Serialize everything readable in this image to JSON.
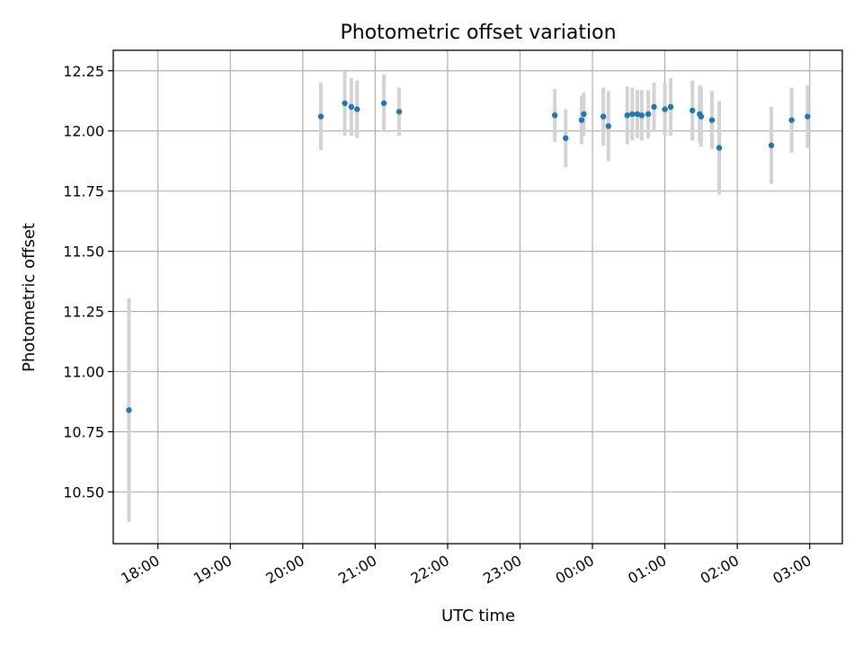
{
  "chart_data": {
    "type": "scatter",
    "title": "Photometric offset variation",
    "xlabel": "UTC time",
    "ylabel": "Photometric offset",
    "x_unit": "hours (UTC, continuing past midnight)",
    "xlim": [
      17.3833,
      27.45
    ],
    "ylim": [
      10.285,
      12.335
    ],
    "xticks": [
      {
        "value": 18,
        "label": "18:00"
      },
      {
        "value": 19,
        "label": "19:00"
      },
      {
        "value": 20,
        "label": "20:00"
      },
      {
        "value": 21,
        "label": "21:00"
      },
      {
        "value": 22,
        "label": "22:00"
      },
      {
        "value": 23,
        "label": "23:00"
      },
      {
        "value": 24,
        "label": "00:00"
      },
      {
        "value": 25,
        "label": "01:00"
      },
      {
        "value": 26,
        "label": "02:00"
      },
      {
        "value": 27,
        "label": "03:00"
      }
    ],
    "yticks": [
      {
        "value": 10.5,
        "label": "10.50"
      },
      {
        "value": 10.75,
        "label": "10.75"
      },
      {
        "value": 11.0,
        "label": "11.00"
      },
      {
        "value": 11.25,
        "label": "11.25"
      },
      {
        "value": 11.5,
        "label": "11.50"
      },
      {
        "value": 11.75,
        "label": "11.75"
      },
      {
        "value": 12.0,
        "label": "12.00"
      },
      {
        "value": 12.25,
        "label": "12.25"
      }
    ],
    "grid": true,
    "colors": {
      "points": "#1f77b4",
      "errorbars": "#d3d3d3",
      "grid": "#b0b0b0"
    },
    "points": [
      {
        "x": 17.6,
        "y": 10.84,
        "err": 0.465
      },
      {
        "x": 20.25,
        "y": 12.06,
        "err": 0.14
      },
      {
        "x": 20.58,
        "y": 12.115,
        "err": 0.135
      },
      {
        "x": 20.67,
        "y": 12.1,
        "err": 0.12
      },
      {
        "x": 20.75,
        "y": 12.09,
        "err": 0.12
      },
      {
        "x": 21.12,
        "y": 12.115,
        "err": 0.12
      },
      {
        "x": 21.33,
        "y": 12.08,
        "err": 0.1
      },
      {
        "x": 23.48,
        "y": 12.065,
        "err": 0.11
      },
      {
        "x": 23.63,
        "y": 11.97,
        "err": 0.12
      },
      {
        "x": 23.85,
        "y": 12.045,
        "err": 0.1
      },
      {
        "x": 23.88,
        "y": 12.07,
        "err": 0.09
      },
      {
        "x": 24.15,
        "y": 12.06,
        "err": 0.12
      },
      {
        "x": 24.22,
        "y": 12.02,
        "err": 0.145
      },
      {
        "x": 24.48,
        "y": 12.065,
        "err": 0.12
      },
      {
        "x": 24.55,
        "y": 12.07,
        "err": 0.11
      },
      {
        "x": 24.62,
        "y": 12.07,
        "err": 0.1
      },
      {
        "x": 24.68,
        "y": 12.065,
        "err": 0.105
      },
      {
        "x": 24.77,
        "y": 12.07,
        "err": 0.1
      },
      {
        "x": 24.85,
        "y": 12.1,
        "err": 0.1
      },
      {
        "x": 25.0,
        "y": 12.09,
        "err": 0.11
      },
      {
        "x": 25.08,
        "y": 12.1,
        "err": 0.12
      },
      {
        "x": 25.38,
        "y": 12.085,
        "err": 0.125
      },
      {
        "x": 25.48,
        "y": 12.07,
        "err": 0.12
      },
      {
        "x": 25.5,
        "y": 12.06,
        "err": 0.125
      },
      {
        "x": 25.65,
        "y": 12.045,
        "err": 0.12
      },
      {
        "x": 25.75,
        "y": 11.93,
        "err": 0.195
      },
      {
        "x": 26.47,
        "y": 11.94,
        "err": 0.16
      },
      {
        "x": 26.75,
        "y": 12.045,
        "err": 0.135
      },
      {
        "x": 26.97,
        "y": 12.06,
        "err": 0.13
      }
    ]
  }
}
